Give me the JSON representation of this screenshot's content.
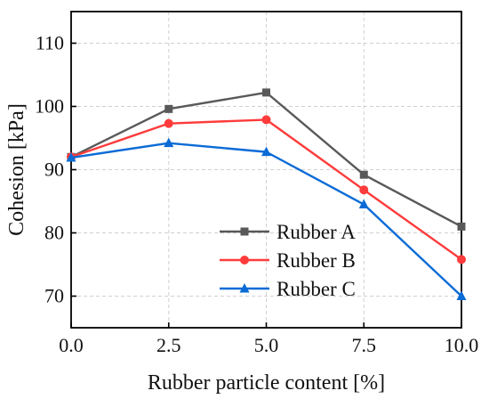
{
  "chart_data": {
    "type": "line",
    "title": "",
    "xlabel": "Rubber particle content [%]",
    "ylabel": "Cohesion [kPa]",
    "x": [
      0.0,
      2.5,
      5.0,
      7.5,
      10.0
    ],
    "x_tick_labels": [
      "0.0",
      "2.5",
      "5.0",
      "7.5",
      "10.0"
    ],
    "y_ticks": [
      70,
      80,
      90,
      100,
      110
    ],
    "y_tick_labels": [
      "70",
      "80",
      "90",
      "100",
      "110"
    ],
    "xlim": [
      0,
      10
    ],
    "ylim": [
      65,
      115
    ],
    "grid": true,
    "legend_position": "lower-center",
    "series": [
      {
        "name": "Rubber A",
        "values": [
          92.0,
          99.6,
          102.2,
          89.2,
          81.0
        ],
        "color": "#595959",
        "marker": "square"
      },
      {
        "name": "Rubber B",
        "values": [
          92.0,
          97.3,
          97.9,
          86.8,
          75.8
        ],
        "color": "#ff3b3b",
        "marker": "circle"
      },
      {
        "name": "Rubber C",
        "values": [
          91.9,
          94.2,
          92.8,
          84.5,
          70.0
        ],
        "color": "#0a6bd6",
        "marker": "triangle"
      }
    ]
  }
}
